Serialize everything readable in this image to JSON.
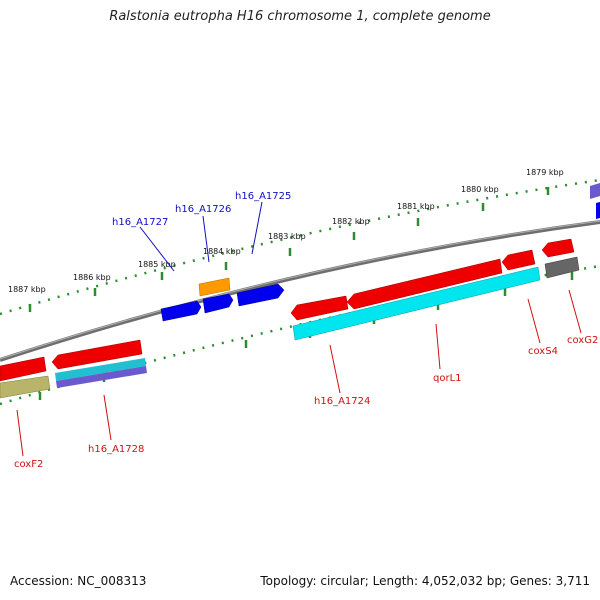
{
  "title": "Ralstonia eutropha H16 chromosome 1, complete genome",
  "footer": {
    "accession": "Accession: NC_008313",
    "summary": "Topology: circular; Length: 4,052,032 bp; Genes: 3,711"
  },
  "scale_labels": [
    "1887 kbp",
    "1886 kbp",
    "1885 kbp",
    "1884 kbp",
    "1883 kbp",
    "1882 kbp",
    "1881 kbp",
    "1880 kbp",
    "1879 kbp"
  ],
  "gene_labels_top": [
    "h16_A1727",
    "h16_A1726",
    "h16_A1725"
  ],
  "gene_labels_bottom": [
    "coxF2",
    "h16_A1728",
    "h16_A1724",
    "qorL1",
    "coxS4",
    "coxG2"
  ],
  "colors": {
    "backbone": "#808080",
    "tick": "#2e8b2e",
    "forward_gene": "#0000ee",
    "reverse_gene": "#ee0000",
    "cds_cyan": "#00e5ee",
    "top_label": "#1010c0",
    "bottom_label": "#d01010"
  }
}
